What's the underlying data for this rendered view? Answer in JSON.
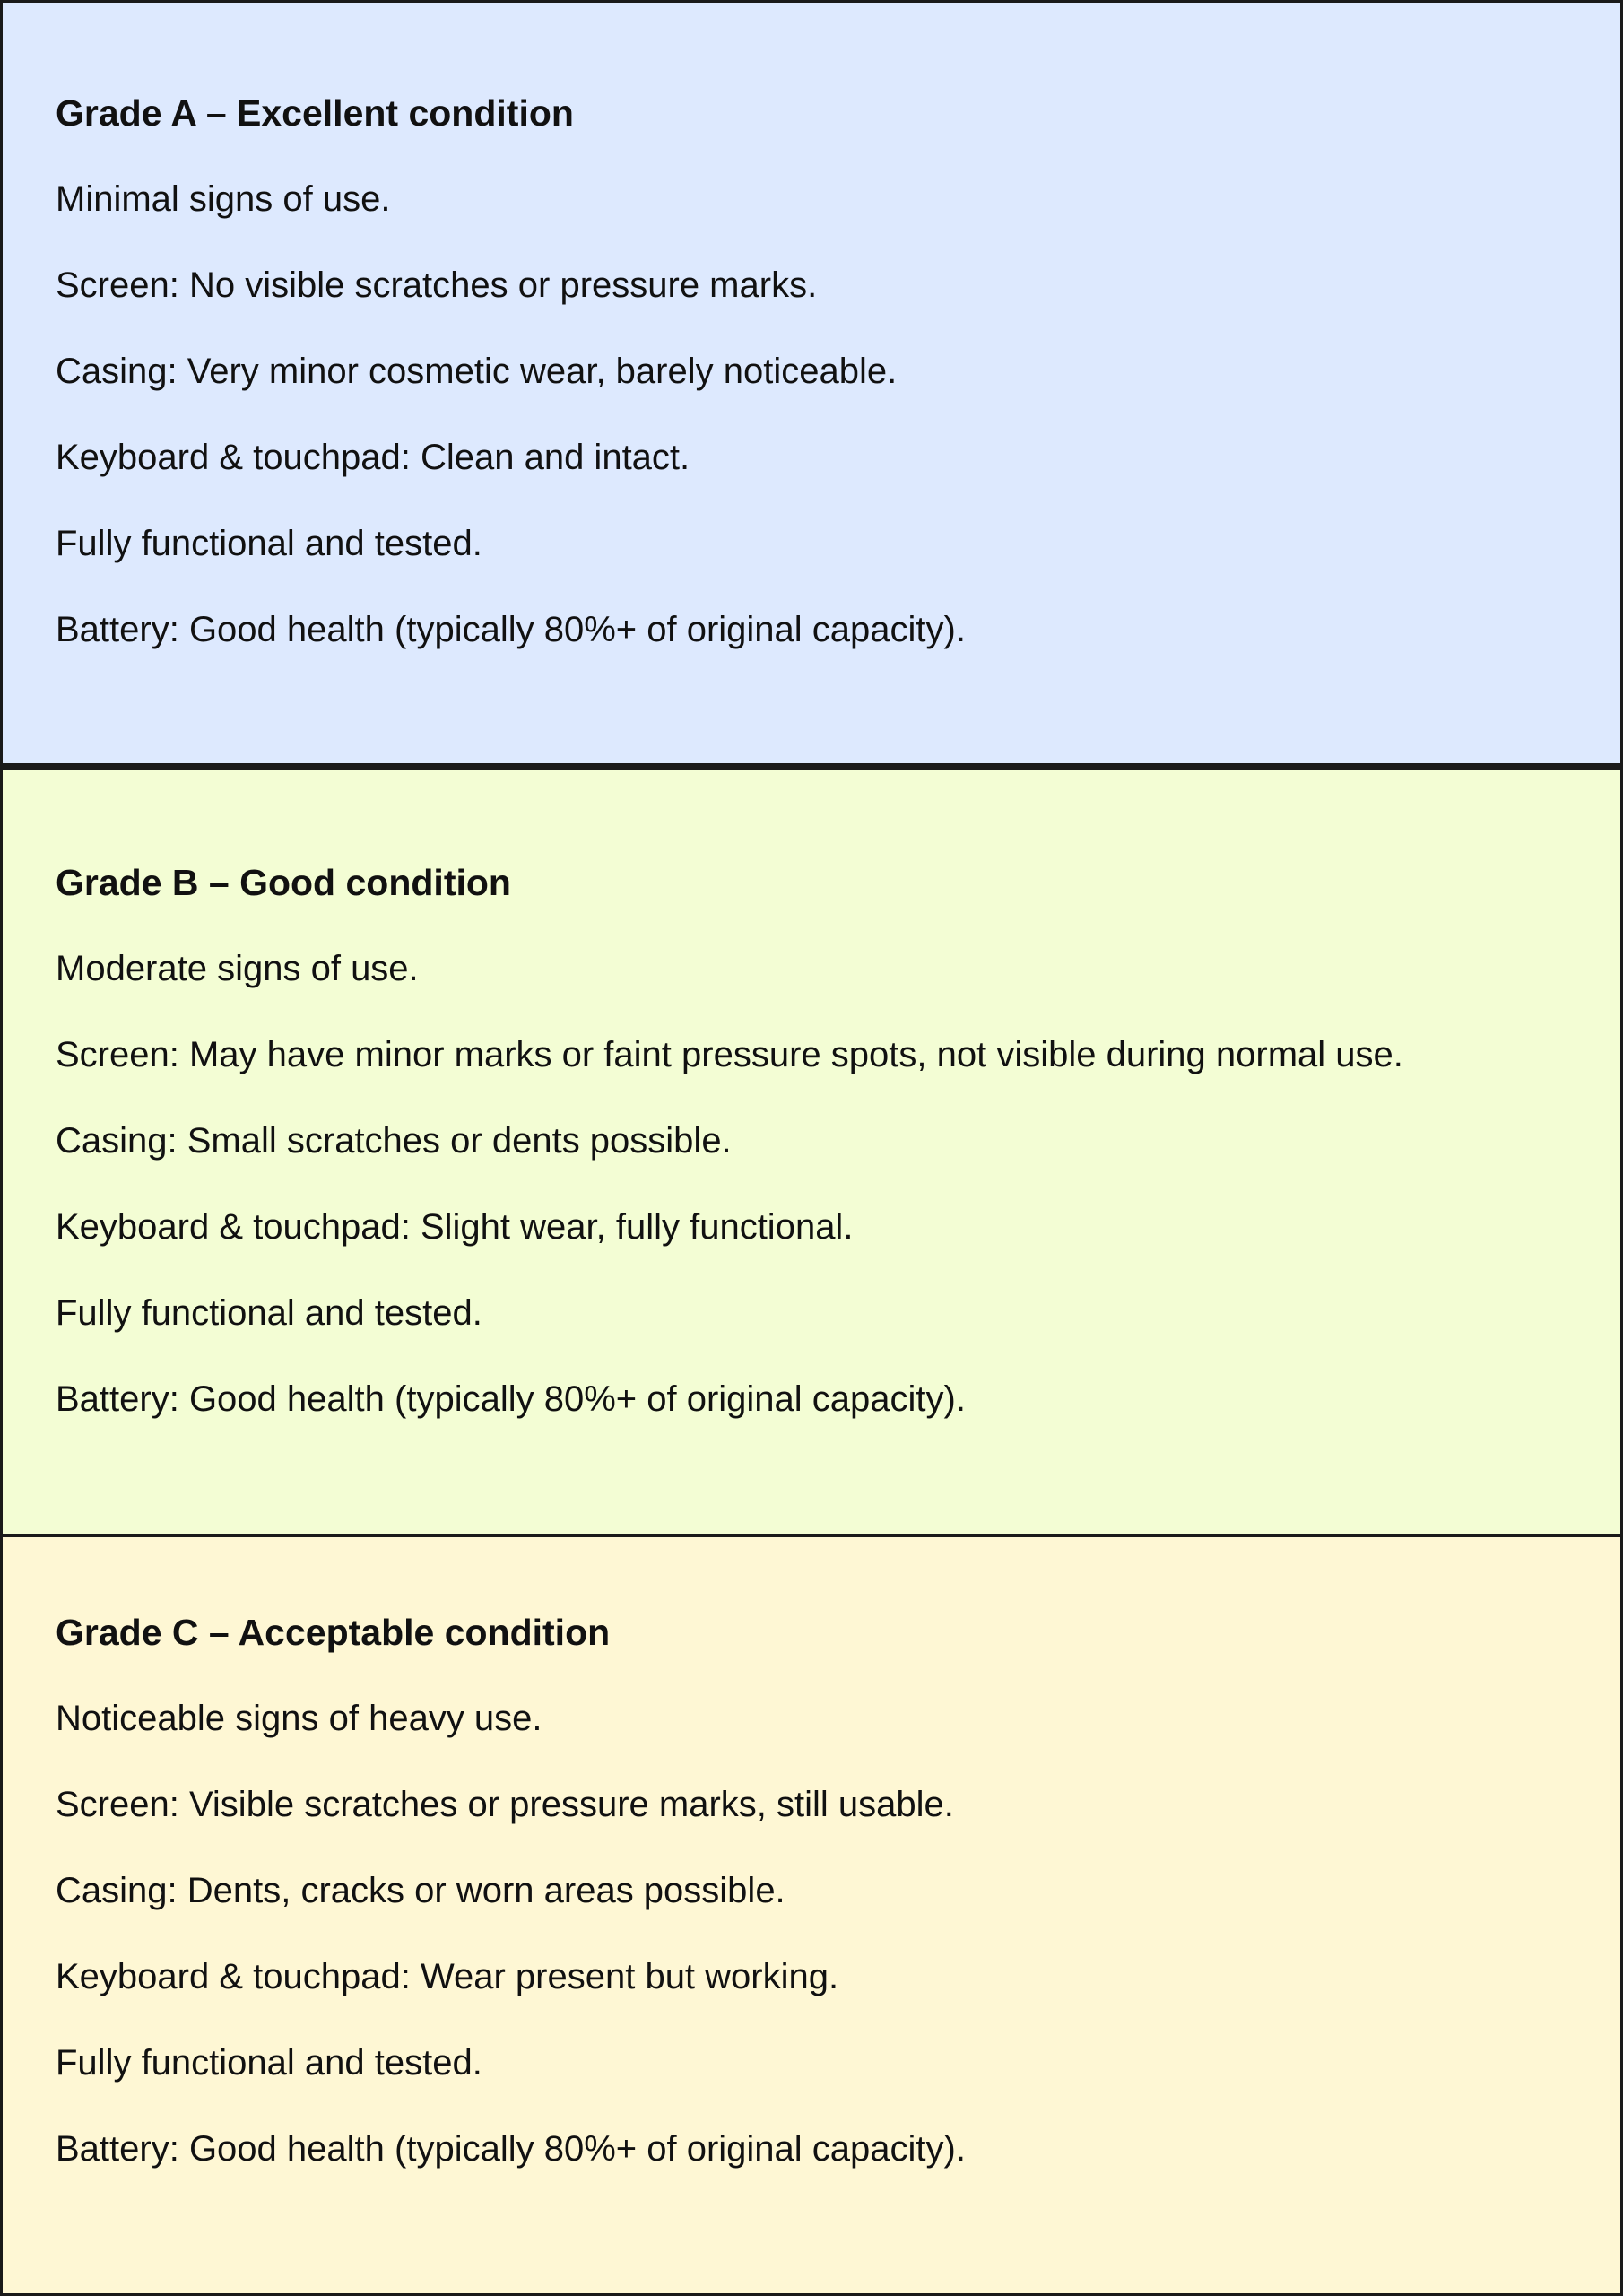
{
  "colors": {
    "grade_a_bg": "#dde9fe",
    "grade_b_bg": "#f3fdd4",
    "grade_c_bg": "#fef7d4",
    "border": "#1a1a1a"
  },
  "grades": [
    {
      "title": "Grade A – Excellent condition",
      "lines": [
        "Minimal signs of use.",
        "Screen: No visible scratches or pressure marks.",
        "Casing: Very minor cosmetic wear, barely noticeable.",
        "Keyboard & touchpad: Clean and intact.",
        "Fully functional and tested.",
        "Battery: Good health (typically 80%+ of original capacity)."
      ]
    },
    {
      "title": "Grade B – Good condition",
      "lines": [
        "Moderate signs of use.",
        "Screen: May have minor marks or faint pressure spots, not visible during normal use.",
        "Casing: Small scratches or dents possible.",
        "Keyboard & touchpad: Slight wear, fully functional.",
        "Fully functional and tested.",
        "Battery: Good health (typically 80%+ of original capacity)."
      ]
    },
    {
      "title": "Grade C – Acceptable condition",
      "lines": [
        "Noticeable signs of heavy use.",
        "Screen: Visible scratches or pressure marks, still usable.",
        "Casing: Dents, cracks or worn areas possible.",
        "Keyboard & touchpad: Wear present but working.",
        "Fully functional and tested.",
        "Battery: Good health (typically 80%+ of original capacity)."
      ]
    }
  ]
}
